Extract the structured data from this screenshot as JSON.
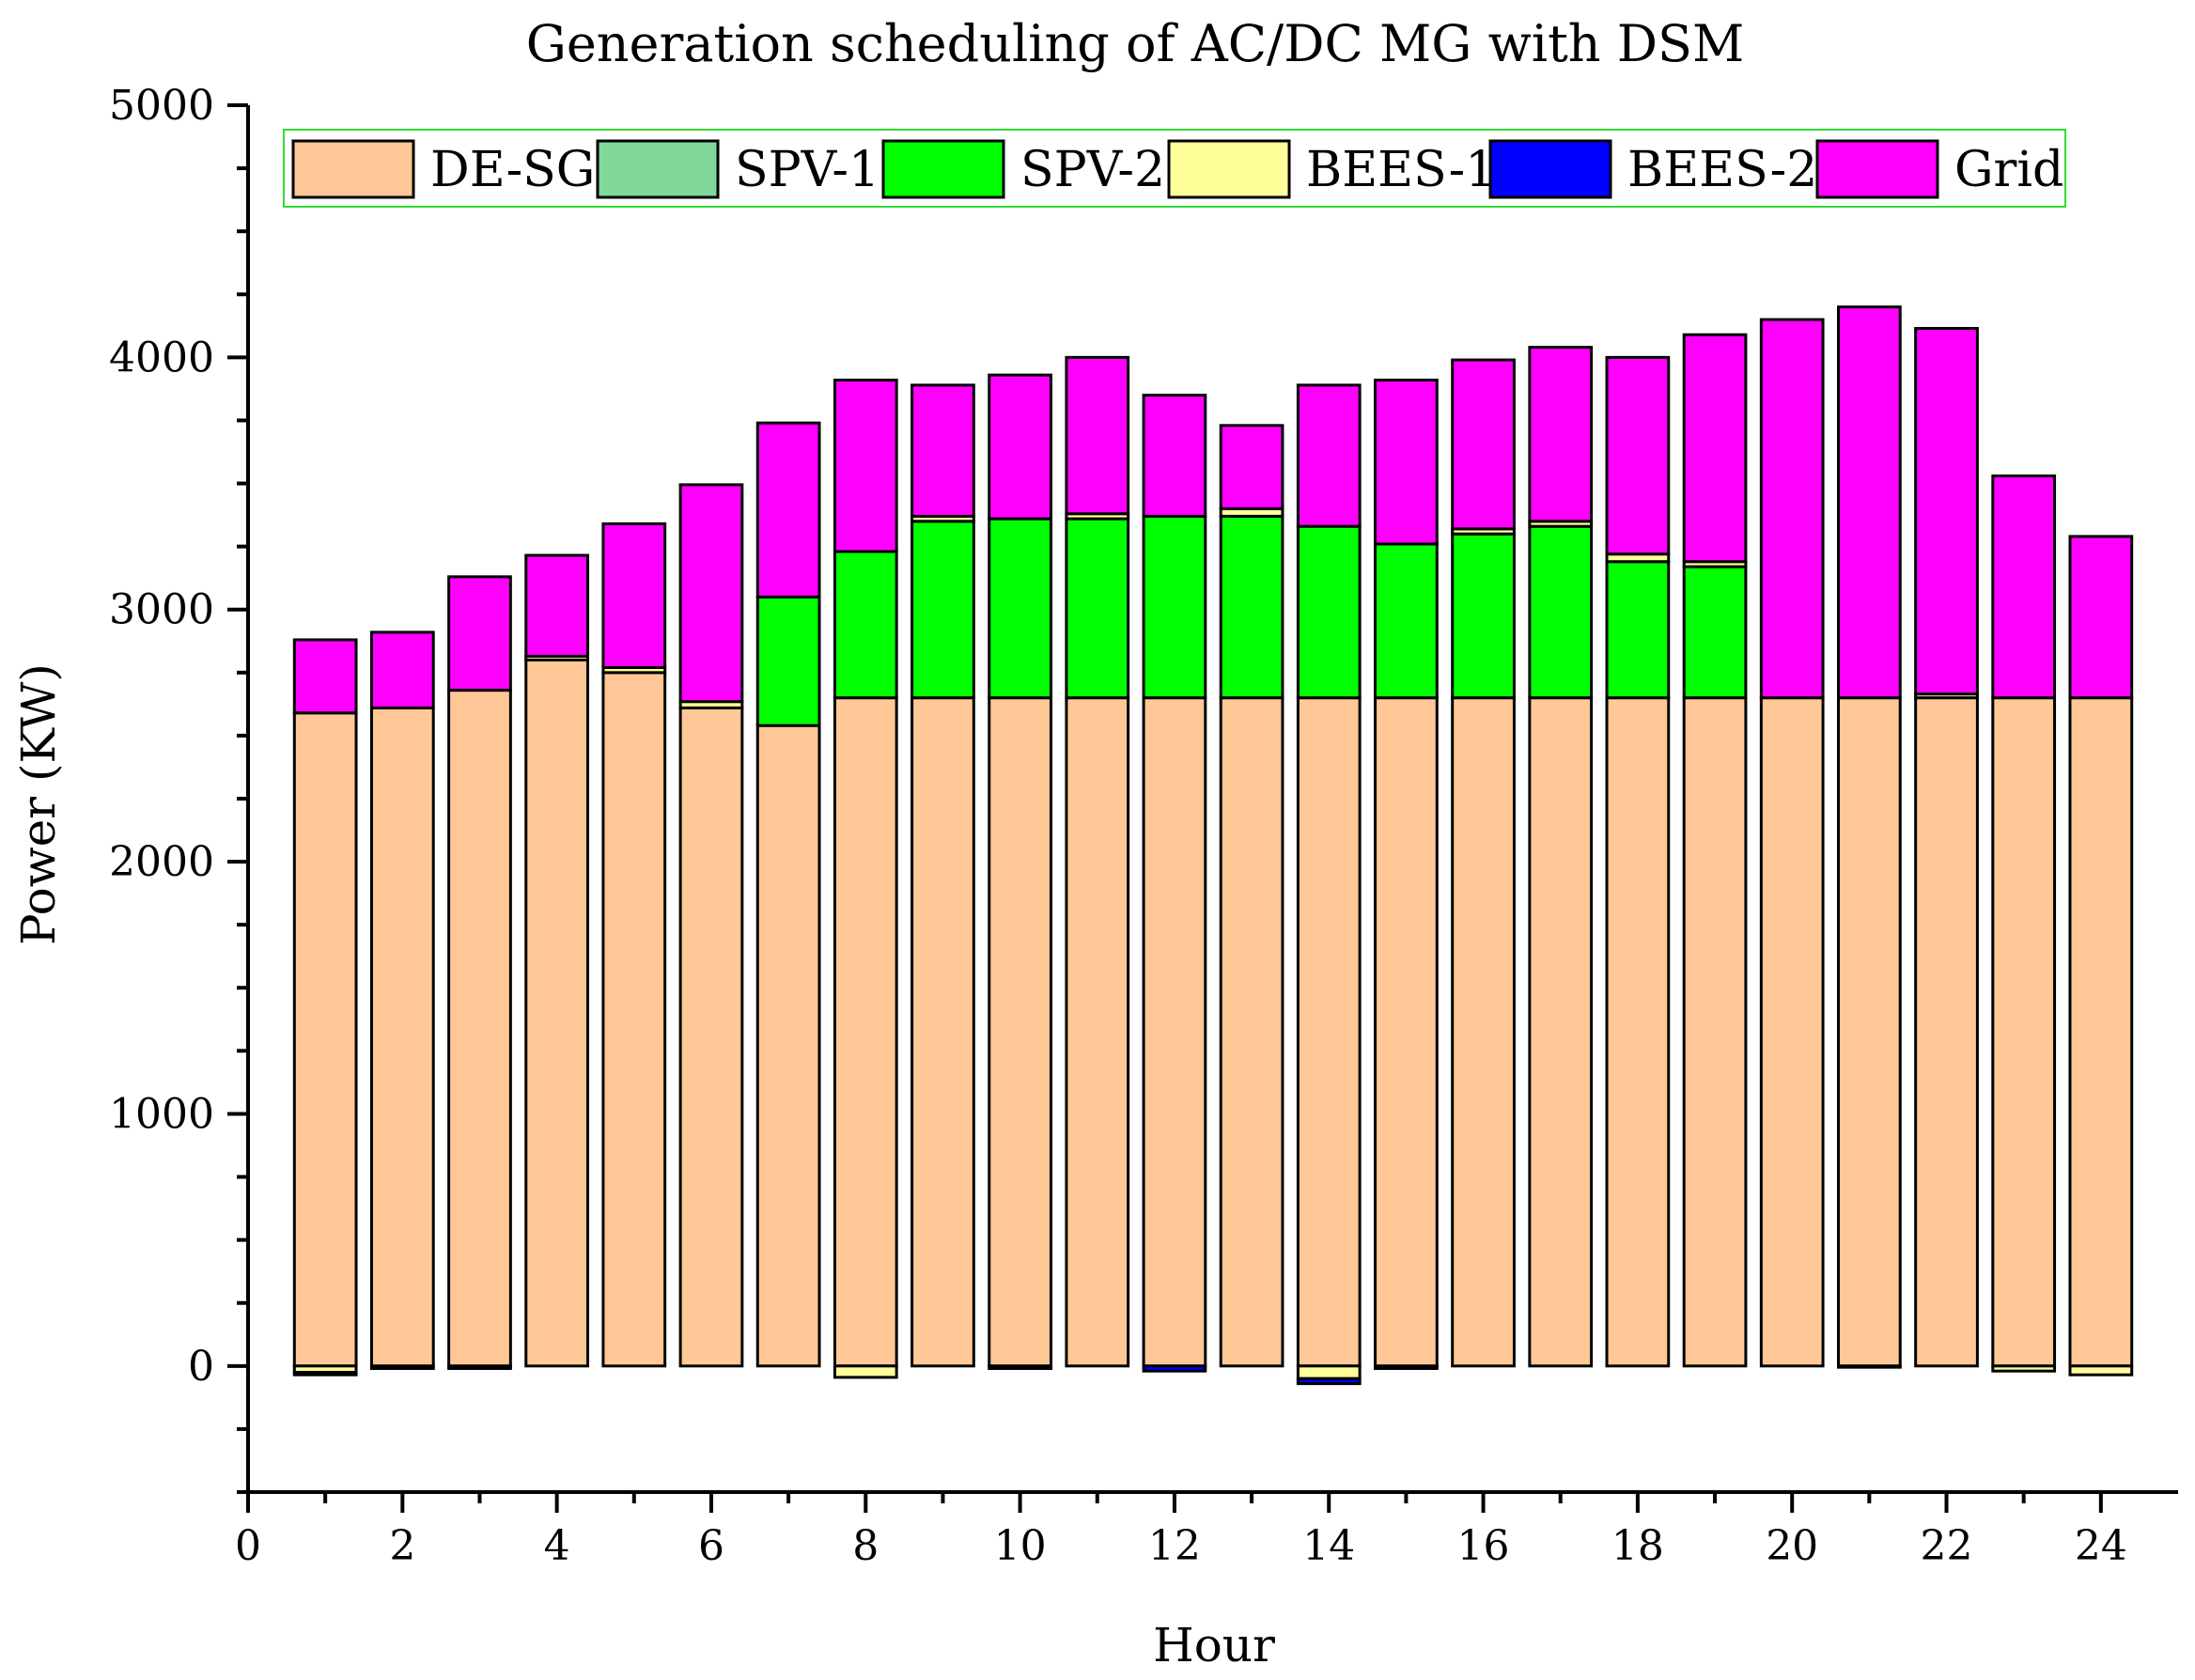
{
  "chart_data": {
    "type": "bar",
    "stacked": true,
    "title": "Generation scheduling of AC/DC MG with DSM",
    "xlabel": "Hour",
    "ylabel": "Power (KW)",
    "xlim": [
      0,
      25
    ],
    "ylim": [
      -500,
      5000
    ],
    "xticks": [
      0,
      2,
      4,
      6,
      8,
      10,
      12,
      14,
      16,
      18,
      20,
      22,
      24
    ],
    "yticks": [
      0,
      1000,
      2000,
      3000,
      4000,
      5000
    ],
    "legend_position": "top",
    "categories": [
      1,
      2,
      3,
      4,
      5,
      6,
      7,
      8,
      9,
      10,
      11,
      12,
      13,
      14,
      15,
      16,
      17,
      18,
      19,
      20,
      21,
      22,
      23,
      24
    ],
    "series": [
      {
        "name": "DE-SG",
        "color": "#FFC896",
        "values": [
          2590,
          2610,
          2680,
          2800,
          2750,
          2610,
          2540,
          2650,
          2650,
          2650,
          2650,
          2650,
          2650,
          2650,
          2650,
          2650,
          2650,
          2650,
          2650,
          2650,
          2650,
          2650,
          2650,
          2650
        ]
      },
      {
        "name": "SPV-1",
        "color": "#80D89A",
        "values": [
          0,
          0,
          0,
          0,
          0,
          0,
          0,
          0,
          0,
          0,
          0,
          0,
          0,
          0,
          0,
          0,
          0,
          0,
          0,
          0,
          0,
          0,
          0,
          0
        ]
      },
      {
        "name": "SPV-2",
        "color": "#00FF00",
        "values": [
          0,
          0,
          0,
          0,
          0,
          0,
          510,
          580,
          700,
          710,
          710,
          720,
          720,
          680,
          610,
          650,
          680,
          540,
          520,
          0,
          0,
          0,
          0,
          0
        ]
      },
      {
        "name": "BEES-1",
        "color": "#FFFF99",
        "values": [
          -25,
          -5,
          0,
          15,
          20,
          25,
          0,
          -45,
          20,
          0,
          20,
          0,
          30,
          -50,
          -10,
          20,
          20,
          30,
          20,
          0,
          -5,
          15,
          -20,
          -35
        ]
      },
      {
        "name": "BEES-2",
        "color": "#0000FF",
        "values": [
          -10,
          -5,
          -10,
          0,
          0,
          0,
          0,
          0,
          0,
          -10,
          0,
          -20,
          0,
          -20,
          0,
          0,
          0,
          0,
          0,
          0,
          0,
          0,
          0,
          0
        ]
      },
      {
        "name": "Grid",
        "color": "#FF00FF",
        "values": [
          290,
          300,
          450,
          400,
          570,
          860,
          690,
          680,
          520,
          570,
          620,
          480,
          330,
          560,
          650,
          670,
          690,
          780,
          900,
          1500,
          1550,
          1450,
          880,
          640
        ]
      }
    ]
  }
}
